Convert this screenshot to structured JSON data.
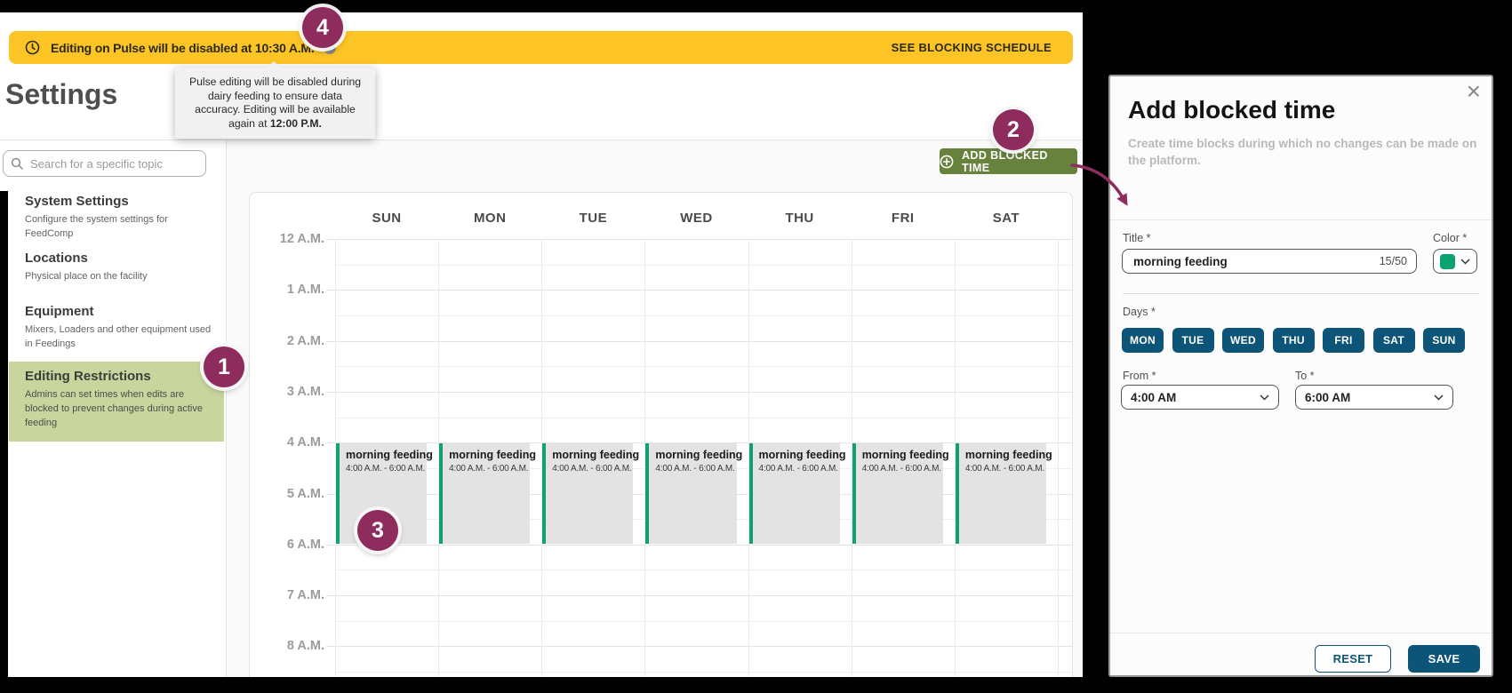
{
  "colors": {
    "banner_yellow": "#fcc425",
    "annotation_maroon": "#8e2c5e",
    "add_button_olive": "#66823d",
    "active_item_green": "#c8d69e",
    "teal_primary": "#0d5578",
    "event_green": "#12a06c",
    "event_gray": "#e3e3e3"
  },
  "banner": {
    "text": "Editing on Pulse will be disabled at 10:30 A.M.",
    "action": "SEE BLOCKING SCHEDULE"
  },
  "tooltip": {
    "text": "Pulse editing will be disabled during dairy feeding to ensure data accuracy. Editing will be available again at ",
    "bold_text": "12:00 P.M."
  },
  "page": {
    "title": "Settings"
  },
  "sidebar": {
    "search_placeholder": "Search for a specific topic",
    "items": [
      {
        "title": "System Settings",
        "desc": "Configure the system settings for FeedComp",
        "active": false
      },
      {
        "title": "Locations",
        "desc": "Physical place on the facility",
        "active": false
      },
      {
        "title": "Equipment",
        "desc": "Mixers, Loaders and other equipment used in Feedings",
        "active": false
      },
      {
        "title": "Editing Restrictions",
        "desc": "Admins can set times when edits are blocked to prevent changes during active feeding",
        "active": true
      }
    ]
  },
  "toolbar": {
    "add_button": "ADD BLOCKED TIME"
  },
  "calendar": {
    "days": [
      "SUN",
      "MON",
      "TUE",
      "WED",
      "THU",
      "FRI",
      "SAT"
    ],
    "hours": [
      "12 A.M.",
      "1 A.M.",
      "2 A.M.",
      "3 A.M.",
      "4 A.M.",
      "5 A.M.",
      "6 A.M.",
      "7 A.M.",
      "8 A.M."
    ],
    "event": {
      "title": "morning feeding",
      "time": "4:00 A.M. - 6:00 A.M.",
      "start_hour_index": 4,
      "end_hour_index": 6,
      "days": [
        "SUN",
        "MON",
        "TUE",
        "WED",
        "THU",
        "FRI",
        "SAT"
      ]
    }
  },
  "panel": {
    "title": "Add blocked time",
    "subtitle": "Create time blocks during which no changes can be made on the platform.",
    "close_icon": "×",
    "title_label": "Title *",
    "title_value": "morning feeding",
    "char_counter": "15/50",
    "color_label": "Color *",
    "color_value": "#0ba36d",
    "days_label": "Days *",
    "day_options": [
      "MON",
      "TUE",
      "WED",
      "THU",
      "FRI",
      "SAT",
      "SUN"
    ],
    "from_label": "From *",
    "from_value": "4:00 AM",
    "to_label": "To *",
    "to_value": "6:00 AM",
    "reset_button": "RESET",
    "save_button": "SAVE"
  },
  "annotations": {
    "step1": "1",
    "step2": "2",
    "step3": "3",
    "step4": "4"
  }
}
